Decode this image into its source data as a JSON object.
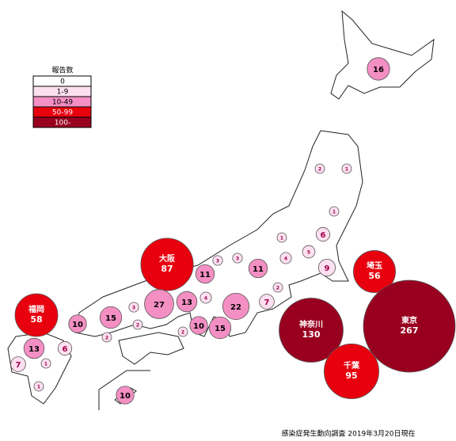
{
  "legend": {
    "title": "報告数",
    "items": [
      {
        "label": "0",
        "color": "#ffffff"
      },
      {
        "label": "1-9",
        "color": "#fde0f0"
      },
      {
        "label": "10-49",
        "color": "#f48fc4"
      },
      {
        "label": "50-99",
        "color": "#e8000f"
      },
      {
        "label": "100-",
        "color": "#990020"
      }
    ]
  },
  "bubbles": [
    {
      "value": 16,
      "color": "#f48fc4"
    },
    {
      "value": 1,
      "color": "#fde0f0"
    },
    {
      "value": 2,
      "color": "#fde0f0"
    },
    {
      "value": 1,
      "color": "#fde0f0"
    },
    {
      "value": 6,
      "color": "#fde0f0"
    },
    {
      "value": 1,
      "color": "#fde0f0"
    },
    {
      "value": 5,
      "color": "#fde0f0"
    },
    {
      "value": 4,
      "color": "#fde0f0"
    },
    {
      "value": 9,
      "color": "#fde0f0"
    },
    {
      "name": "埼玉",
      "value": 56,
      "color": "#e8000f"
    },
    {
      "name": "東京",
      "value": 267,
      "color": "#990020"
    },
    {
      "name": "神奈川",
      "value": 130,
      "color": "#990020"
    },
    {
      "name": "千葉",
      "value": 95,
      "color": "#e8000f"
    },
    {
      "value": 11,
      "color": "#f48fc4"
    },
    {
      "value": 2,
      "color": "#fde0f0"
    },
    {
      "value": 7,
      "color": "#fde0f0"
    },
    {
      "value": 22,
      "color": "#f48fc4"
    },
    {
      "value": 3,
      "color": "#fde0f0"
    },
    {
      "value": 3,
      "color": "#fde0f0"
    },
    {
      "value": 11,
      "color": "#f48fc4"
    },
    {
      "name": "大阪",
      "value": 87,
      "color": "#e8000f"
    },
    {
      "value": 27,
      "color": "#f48fc4"
    },
    {
      "value": 13,
      "color": "#f48fc4"
    },
    {
      "value": 4,
      "color": "#fde0f0"
    },
    {
      "value": 3,
      "color": "#fde0f0"
    },
    {
      "value": 15,
      "color": "#f48fc4"
    },
    {
      "value": 10,
      "color": "#f48fc4"
    },
    {
      "name": "福岡",
      "value": 58,
      "color": "#e8000f"
    },
    {
      "value": 2,
      "color": "#fde0f0"
    },
    {
      "value": 2,
      "color": "#fde0f0"
    },
    {
      "value": 10,
      "color": "#f48fc4"
    },
    {
      "value": 15,
      "color": "#f48fc4"
    },
    {
      "value": 2,
      "color": "#fde0f0"
    },
    {
      "value": 13,
      "color": "#f48fc4"
    },
    {
      "value": 6,
      "color": "#fde0f0"
    },
    {
      "value": 7,
      "color": "#fde0f0"
    },
    {
      "value": 1,
      "color": "#fde0f0"
    },
    {
      "value": 1,
      "color": "#fde0f0"
    },
    {
      "value": 10,
      "color": "#f48fc4"
    }
  ],
  "footer": "感染症発生動向調査 2019年3月20日現在"
}
